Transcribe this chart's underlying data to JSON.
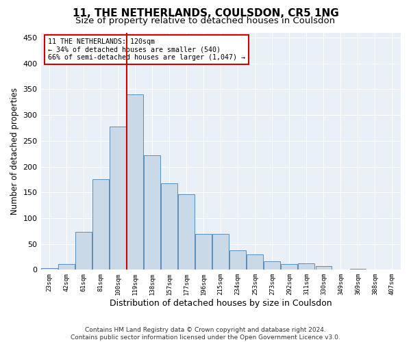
{
  "title": "11, THE NETHERLANDS, COULSDON, CR5 1NG",
  "subtitle": "Size of property relative to detached houses in Coulsdon",
  "xlabel": "Distribution of detached houses by size in Coulsdon",
  "ylabel": "Number of detached properties",
  "bar_labels": [
    "23sqm",
    "42sqm",
    "61sqm",
    "81sqm",
    "100sqm",
    "119sqm",
    "138sqm",
    "157sqm",
    "177sqm",
    "196sqm",
    "215sqm",
    "234sqm",
    "253sqm",
    "273sqm",
    "292sqm",
    "311sqm",
    "330sqm",
    "349sqm",
    "369sqm",
    "388sqm",
    "407sqm"
  ],
  "bar_values": [
    3,
    11,
    74,
    176,
    277,
    340,
    222,
    168,
    146,
    69,
    69,
    37,
    30,
    16,
    11,
    13,
    7,
    0,
    2,
    0,
    1
  ],
  "bar_color": "#c9d9e8",
  "bar_edge_color": "#5b8db8",
  "vline_index": 5,
  "vline_color": "#cc0000",
  "annotation_text": "11 THE NETHERLANDS: 120sqm\n← 34% of detached houses are smaller (540)\n66% of semi-detached houses are larger (1,047) →",
  "annotation_box_color": "#ffffff",
  "annotation_box_edge_color": "#cc0000",
  "ylim": [
    0,
    460
  ],
  "yticks": [
    0,
    50,
    100,
    150,
    200,
    250,
    300,
    350,
    400,
    450
  ],
  "plot_bg_color": "#eaf0f8",
  "footer": "Contains HM Land Registry data © Crown copyright and database right 2024.\nContains public sector information licensed under the Open Government Licence v3.0.",
  "title_fontsize": 11,
  "subtitle_fontsize": 9.5,
  "xlabel_fontsize": 9,
  "ylabel_fontsize": 8.5,
  "footer_fontsize": 6.5
}
